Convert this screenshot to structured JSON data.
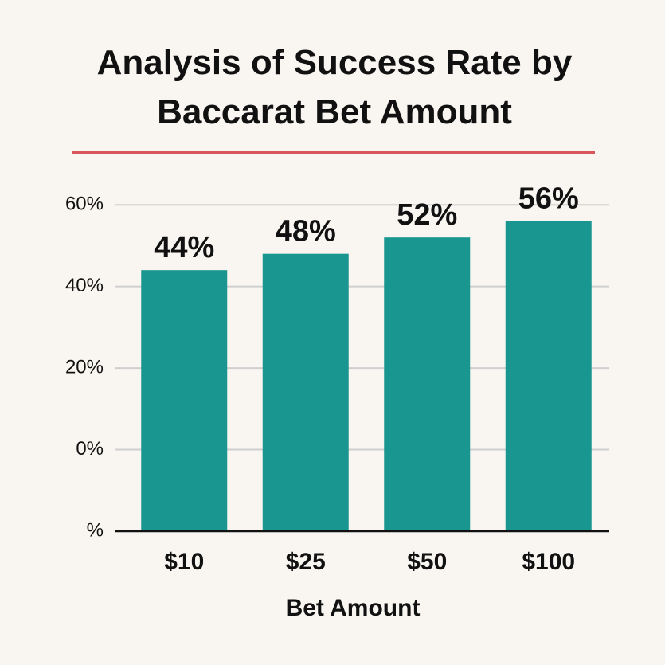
{
  "chart_data": {
    "type": "bar",
    "title": "Analysis of Success Rate by Baccarat Bet Amount",
    "xlabel": "Bet Amount",
    "categories": [
      "$10",
      "$25",
      "$50",
      "$100"
    ],
    "values": [
      44,
      48,
      52,
      56
    ],
    "value_labels": [
      "44%",
      "48%",
      "52%",
      "56%"
    ],
    "color": "#1a9690",
    "ylim": [
      -20,
      65
    ],
    "yticks": [
      {
        "value": -20,
        "label": "%"
      },
      {
        "value": 0,
        "label": "0%"
      },
      {
        "value": 20,
        "label": "20%"
      },
      {
        "value": 40,
        "label": "40%"
      },
      {
        "value": 60,
        "label": "60%"
      }
    ],
    "grid": true
  }
}
